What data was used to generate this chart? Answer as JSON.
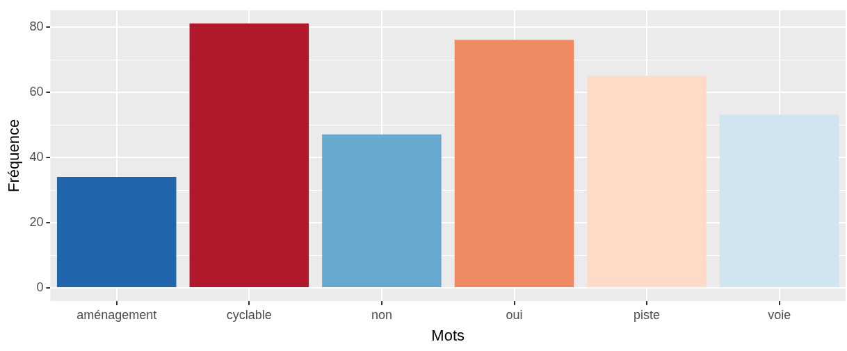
{
  "chart_data": {
    "type": "bar",
    "xlabel": "Mots",
    "ylabel": "Fréquence",
    "categories": [
      "aménagement",
      "cyclable",
      "non",
      "oui",
      "piste",
      "voie"
    ],
    "values": [
      34,
      81,
      47,
      76,
      65,
      53
    ],
    "colors": [
      "#2166ac",
      "#b2182b",
      "#67a9cf",
      "#ef8a62",
      "#fddbc7",
      "#d1e5f0"
    ],
    "ylim": [
      -4.05,
      85.05
    ],
    "yticks": [
      0,
      20,
      40,
      60,
      80
    ],
    "grid": true,
    "legend": false
  }
}
